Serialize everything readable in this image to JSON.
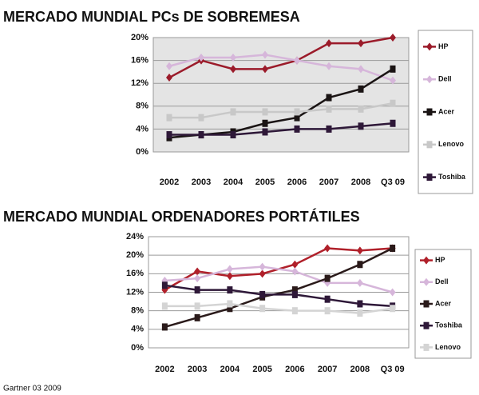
{
  "charts_footer": "Gartner 03 2009",
  "chart_data": [
    {
      "type": "line",
      "title": "MERCADO MUNDIAL PCs DE SOBREMESA",
      "categories": [
        "2002",
        "2003",
        "2004",
        "2005",
        "2006",
        "2007",
        "2008",
        "Q3 09"
      ],
      "ylim": [
        0,
        20
      ],
      "yticks": [
        {
          "value": 0,
          "label": "0%"
        },
        {
          "value": 4,
          "label": "4%"
        },
        {
          "value": 8,
          "label": "8%"
        },
        {
          "value": 12,
          "label": "12%"
        },
        {
          "value": 16,
          "label": "16%"
        },
        {
          "value": 20,
          "label": "20%"
        }
      ],
      "grid": true,
      "series": [
        {
          "name": "HP",
          "color": "#9b1b2a",
          "values": [
            13,
            16,
            14.5,
            14.5,
            16,
            19,
            19,
            20
          ]
        },
        {
          "name": "Dell",
          "color": "#d6b6da",
          "values": [
            15,
            16.5,
            16.5,
            17,
            16,
            15,
            14.5,
            12.5
          ]
        },
        {
          "name": "Acer",
          "color": "#1a1414",
          "values": [
            2.5,
            3,
            3.5,
            5,
            6,
            9.5,
            11,
            14.5
          ]
        },
        {
          "name": "Lenovo",
          "color": "#c8c8c8",
          "values": [
            6,
            6,
            7,
            7,
            7,
            7.5,
            7.5,
            8.5
          ]
        },
        {
          "name": "Toshiba",
          "color": "#2e1838",
          "values": [
            3,
            3,
            3,
            3.5,
            4,
            4,
            4.5,
            5
          ]
        }
      ]
    },
    {
      "type": "line",
      "title": "MERCADO MUNDIAL ORDENADORES PORTÁTILES",
      "categories": [
        "2002",
        "2003",
        "2004",
        "2005",
        "2006",
        "2007",
        "2008",
        "Q3 09"
      ],
      "ylim": [
        0,
        24
      ],
      "yticks": [
        {
          "value": 0,
          "label": "0%"
        },
        {
          "value": 4,
          "label": "4%"
        },
        {
          "value": 8,
          "label": "8%"
        },
        {
          "value": 12,
          "label": "12%"
        },
        {
          "value": 16,
          "label": "16%"
        },
        {
          "value": 20,
          "label": "20%"
        },
        {
          "value": 24,
          "label": "24%"
        }
      ],
      "grid": true,
      "series": [
        {
          "name": "HP",
          "color": "#b0202a",
          "values": [
            12.5,
            16.5,
            15.5,
            16,
            18,
            21.5,
            21,
            21.5
          ]
        },
        {
          "name": "Dell",
          "color": "#d6b6da",
          "values": [
            14.5,
            15,
            17,
            17.5,
            16.5,
            14,
            14,
            12
          ]
        },
        {
          "name": "Acer",
          "color": "#2a1a1a",
          "values": [
            4.5,
            6.5,
            8.5,
            11,
            12.5,
            15,
            18,
            21.5
          ]
        },
        {
          "name": "Toshiba",
          "color": "#2e1838",
          "values": [
            13.5,
            12.5,
            12.5,
            11.5,
            11.5,
            10.5,
            9.5,
            9
          ]
        },
        {
          "name": "Lenovo",
          "color": "#d4d4d4",
          "values": [
            9,
            9,
            9.5,
            8.5,
            8,
            8,
            7.5,
            8.5
          ]
        }
      ]
    }
  ]
}
